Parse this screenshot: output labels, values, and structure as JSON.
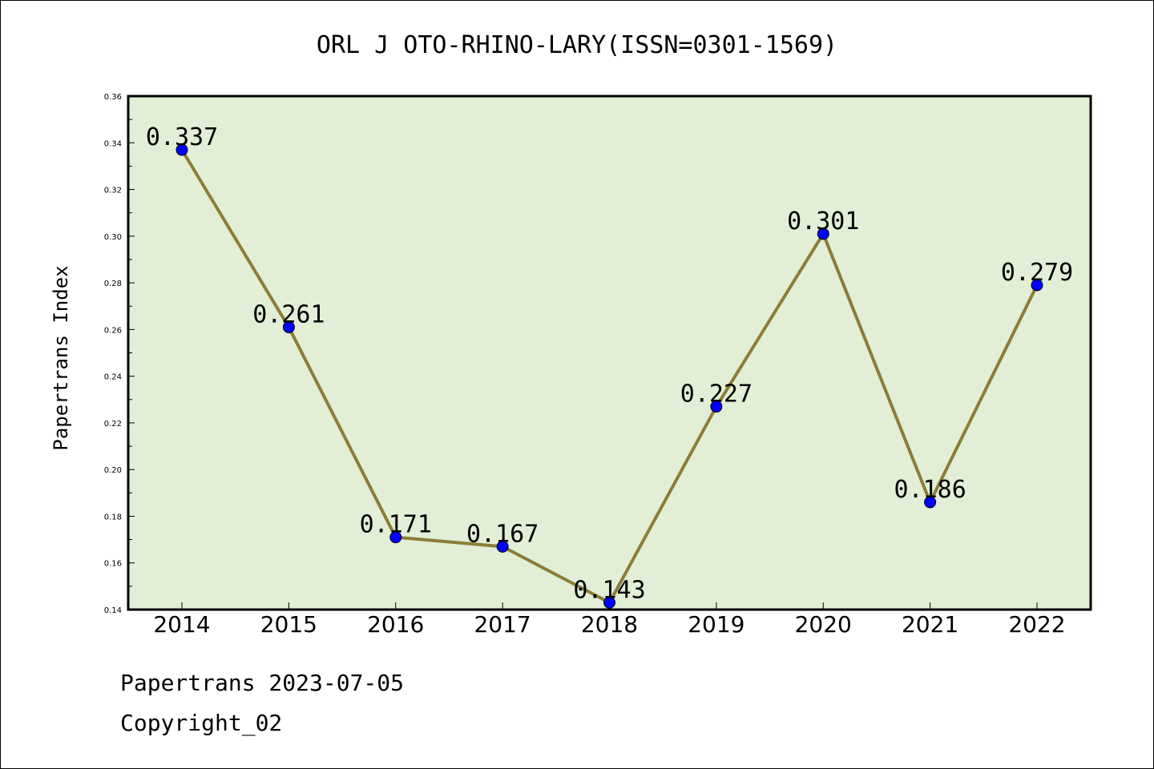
{
  "chart_data": {
    "type": "line",
    "title": "ORL J OTO-RHINO-LARY(ISSN=0301-1569)",
    "ylabel": "Papertrans Index",
    "xlabel": "",
    "categories": [
      "2014",
      "2015",
      "2016",
      "2017",
      "2018",
      "2019",
      "2020",
      "2021",
      "2022"
    ],
    "values": [
      0.337,
      0.261,
      0.171,
      0.167,
      0.143,
      0.227,
      0.301,
      0.186,
      0.279
    ],
    "data_labels": [
      "0.337",
      "0.261",
      "0.171",
      "0.167",
      "0.143",
      "0.227",
      "0.301",
      "0.186",
      "0.279"
    ],
    "ylim": [
      0.14,
      0.36
    ],
    "yticks": [
      "0.14",
      "0.16",
      "0.18",
      "0.20",
      "0.22",
      "0.24",
      "0.26",
      "0.28",
      "0.30",
      "0.32",
      "0.34",
      "0.36"
    ],
    "grid": false,
    "colors": {
      "plot_background": "#e2efd6",
      "line": "#8c7d3a",
      "marker": "#0000ff"
    }
  },
  "footer": {
    "line1": "Papertrans 2023-07-05",
    "line2": "Copyright_02"
  }
}
